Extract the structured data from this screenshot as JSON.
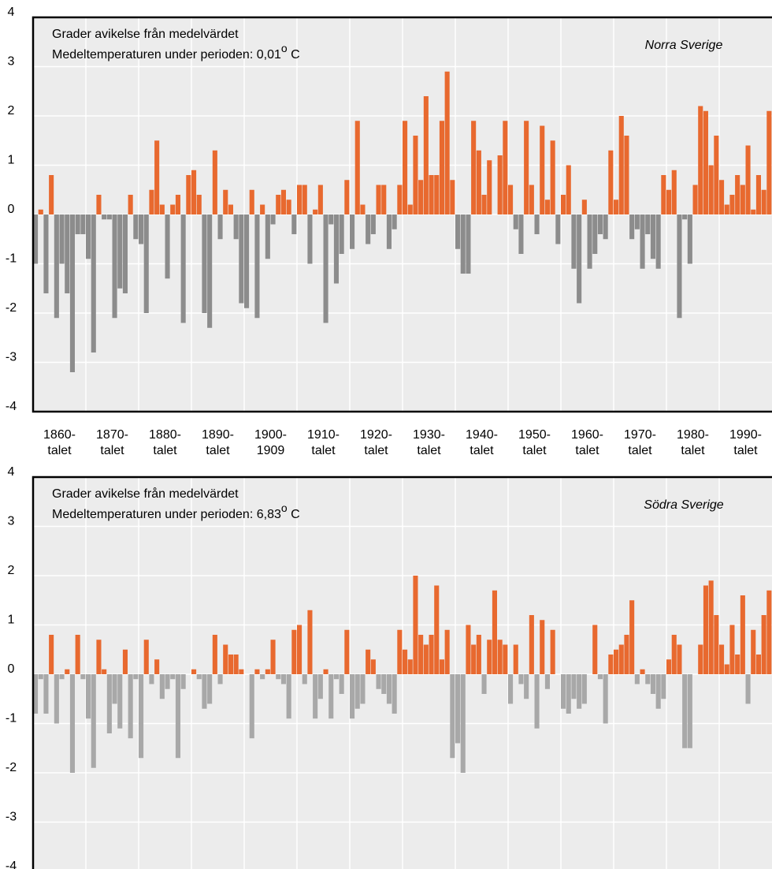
{
  "chart_data": [
    {
      "type": "bar",
      "title": "Norra Sverige",
      "annotations": [
        "Grader avikelse från medelvärdet",
        [
          "Medeltemperaturen under perioden: 0,01",
          "o",
          " C"
        ]
      ],
      "x": [
        1860,
        1861,
        1862,
        1863,
        1864,
        1865,
        1866,
        1867,
        1868,
        1869,
        1870,
        1871,
        1872,
        1873,
        1874,
        1875,
        1876,
        1877,
        1878,
        1879,
        1880,
        1881,
        1882,
        1883,
        1884,
        1885,
        1886,
        1887,
        1888,
        1889,
        1890,
        1891,
        1892,
        1893,
        1894,
        1895,
        1896,
        1897,
        1898,
        1899,
        1900,
        1901,
        1902,
        1903,
        1904,
        1905,
        1906,
        1907,
        1908,
        1909,
        1910,
        1911,
        1912,
        1913,
        1914,
        1915,
        1916,
        1917,
        1918,
        1919,
        1920,
        1921,
        1922,
        1923,
        1924,
        1925,
        1926,
        1927,
        1928,
        1929,
        1930,
        1931,
        1932,
        1933,
        1934,
        1935,
        1936,
        1937,
        1938,
        1939,
        1940,
        1941,
        1942,
        1943,
        1944,
        1945,
        1946,
        1947,
        1948,
        1949,
        1950,
        1951,
        1952,
        1953,
        1954,
        1955,
        1956,
        1957,
        1958,
        1959,
        1960,
        1961,
        1962,
        1963,
        1964,
        1965,
        1966,
        1967,
        1968,
        1969,
        1970,
        1971,
        1972,
        1973,
        1974,
        1975,
        1976,
        1977,
        1978,
        1979,
        1980,
        1981,
        1982,
        1983,
        1984,
        1985,
        1986,
        1987,
        1988,
        1989,
        1990,
        1991,
        1992,
        1993,
        1994,
        1995,
        1996,
        1997,
        1998,
        1999
      ],
      "values": [
        -1.0,
        0.1,
        -1.6,
        0.8,
        -2.1,
        -1.0,
        -1.6,
        -3.2,
        -0.4,
        -0.4,
        -0.9,
        -2.8,
        0.4,
        -0.1,
        -0.1,
        -2.1,
        -1.5,
        -1.6,
        0.4,
        -0.5,
        -0.6,
        -2.0,
        0.5,
        1.5,
        0.2,
        -1.3,
        0.2,
        0.4,
        -2.2,
        0.8,
        0.9,
        0.4,
        -2.0,
        -2.3,
        1.3,
        -0.5,
        0.5,
        0.2,
        -0.5,
        -1.8,
        -1.9,
        0.5,
        -2.1,
        0.2,
        -0.9,
        -0.2,
        0.4,
        0.5,
        0.3,
        -0.4,
        0.6,
        0.6,
        -1.0,
        0.1,
        0.6,
        -2.2,
        -0.2,
        -1.4,
        -0.8,
        0.7,
        -0.7,
        1.9,
        0.2,
        -0.6,
        -0.4,
        0.6,
        0.6,
        -0.7,
        -0.3,
        0.6,
        1.9,
        0.2,
        1.6,
        0.7,
        2.4,
        0.8,
        0.8,
        1.9,
        2.9,
        0.7,
        -0.7,
        -1.2,
        -1.2,
        1.9,
        1.3,
        0.4,
        1.1,
        0.0,
        1.2,
        1.9,
        0.6,
        -0.3,
        -0.8,
        1.9,
        0.6,
        -0.4,
        1.8,
        0.3,
        1.5,
        -0.6,
        0.4,
        1.0,
        -1.1,
        -1.8,
        0.3,
        -1.1,
        -0.8,
        -0.4,
        -0.5,
        1.3,
        0.3,
        2.0,
        1.6,
        -0.5,
        -0.3,
        -1.1,
        -0.4,
        -0.9,
        -1.1,
        0.8,
        0.5,
        0.9,
        -2.1,
        -0.1,
        -1.0,
        0.6,
        2.2,
        2.1,
        1.0,
        1.6,
        0.7,
        0.2,
        0.4,
        0.8,
        0.6,
        1.4,
        0.1,
        0.8,
        0.5,
        2.1
      ],
      "positive_color": "#e8692f",
      "negative_color": "#8c8c8c",
      "xlim": [
        1860,
        2000
      ],
      "xticks": [
        {
          "value": 1860,
          "label": "1860-\ntalet"
        },
        {
          "value": 1870,
          "label": "1870-\ntalet"
        },
        {
          "value": 1880,
          "label": "1880-\ntalet"
        },
        {
          "value": 1890,
          "label": "1890-\ntalet"
        },
        {
          "value": 1900,
          "label": "1900-\n1909"
        },
        {
          "value": 1910,
          "label": "1910-\ntalet"
        },
        {
          "value": 1920,
          "label": "1920-\ntalet"
        },
        {
          "value": 1930,
          "label": "1930-\ntalet"
        },
        {
          "value": 1940,
          "label": "1940-\ntalet"
        },
        {
          "value": 1950,
          "label": "1950-\ntalet"
        },
        {
          "value": 1960,
          "label": "1960-\ntalet"
        },
        {
          "value": 1970,
          "label": "1970-\ntalet"
        },
        {
          "value": 1980,
          "label": "1980-\ntalet"
        },
        {
          "value": 1990,
          "label": "1990-\ntalet"
        }
      ],
      "ylim": [
        -4,
        4
      ],
      "yticks": [
        -4,
        -3,
        -2,
        -1,
        0,
        1,
        2,
        3,
        4
      ],
      "grid": true
    },
    {
      "type": "bar",
      "title": "Södra Sverige",
      "annotations": [
        "Grader avikelse från medelvärdet",
        [
          "Medeltemperaturen under perioden: 6,83",
          "o",
          " C"
        ]
      ],
      "x": [
        1860,
        1861,
        1862,
        1863,
        1864,
        1865,
        1866,
        1867,
        1868,
        1869,
        1870,
        1871,
        1872,
        1873,
        1874,
        1875,
        1876,
        1877,
        1878,
        1879,
        1880,
        1881,
        1882,
        1883,
        1884,
        1885,
        1886,
        1887,
        1888,
        1889,
        1890,
        1891,
        1892,
        1893,
        1894,
        1895,
        1896,
        1897,
        1898,
        1899,
        1900,
        1901,
        1902,
        1903,
        1904,
        1905,
        1906,
        1907,
        1908,
        1909,
        1910,
        1911,
        1912,
        1913,
        1914,
        1915,
        1916,
        1917,
        1918,
        1919,
        1920,
        1921,
        1922,
        1923,
        1924,
        1925,
        1926,
        1927,
        1928,
        1929,
        1930,
        1931,
        1932,
        1933,
        1934,
        1935,
        1936,
        1937,
        1938,
        1939,
        1940,
        1941,
        1942,
        1943,
        1944,
        1945,
        1946,
        1947,
        1948,
        1949,
        1950,
        1951,
        1952,
        1953,
        1954,
        1955,
        1956,
        1957,
        1958,
        1959,
        1960,
        1961,
        1962,
        1963,
        1964,
        1965,
        1966,
        1967,
        1968,
        1969,
        1970,
        1971,
        1972,
        1973,
        1974,
        1975,
        1976,
        1977,
        1978,
        1979,
        1980,
        1981,
        1982,
        1983,
        1984,
        1985,
        1986,
        1987,
        1988,
        1989,
        1990,
        1991,
        1992,
        1993,
        1994,
        1995,
        1996,
        1997,
        1998,
        1999
      ],
      "values": [
        -0.8,
        -0.1,
        -0.8,
        0.8,
        -1.0,
        -0.1,
        0.1,
        -2.0,
        0.8,
        -0.1,
        -0.9,
        -1.9,
        0.7,
        0.1,
        -1.2,
        -0.6,
        -1.1,
        0.5,
        -1.3,
        -0.1,
        -1.7,
        0.7,
        -0.2,
        0.3,
        -0.5,
        -0.3,
        -0.1,
        -1.7,
        -0.3,
        0.0,
        0.1,
        -0.1,
        -0.7,
        -0.6,
        0.8,
        -0.2,
        0.6,
        0.4,
        0.4,
        0.1,
        0.0,
        -1.3,
        0.1,
        -0.1,
        0.1,
        0.7,
        -0.1,
        -0.2,
        -0.9,
        0.9,
        1.0,
        -0.2,
        1.3,
        -0.9,
        -0.5,
        0.1,
        -0.9,
        -0.1,
        -0.4,
        0.9,
        -0.9,
        -0.7,
        -0.6,
        0.5,
        0.3,
        -0.3,
        -0.4,
        -0.6,
        -0.8,
        0.9,
        0.5,
        0.3,
        2.0,
        0.8,
        0.6,
        0.8,
        1.8,
        0.3,
        0.9,
        -1.7,
        -1.4,
        -2.0,
        1.0,
        0.6,
        0.8,
        -0.4,
        0.7,
        1.7,
        0.7,
        0.6,
        -0.6,
        0.6,
        -0.2,
        -0.5,
        1.2,
        -1.1,
        1.1,
        -0.3,
        0.9,
        0.0,
        -0.7,
        -0.8,
        -0.5,
        -0.7,
        -0.6,
        0.0,
        1.0,
        -0.1,
        -1.0,
        0.4,
        0.5,
        0.6,
        0.8,
        1.5,
        -0.2,
        0.1,
        -0.2,
        -0.4,
        -0.7,
        -0.5,
        0.3,
        0.8,
        0.6,
        -1.5,
        -1.5,
        0.0,
        0.6,
        1.8,
        1.9,
        1.2,
        0.6,
        0.2,
        1.0,
        0.4,
        1.6,
        -0.6,
        0.9,
        0.4,
        1.2,
        1.7
      ],
      "positive_color": "#e8692f",
      "negative_color": "#a8a8a8",
      "xlim": [
        1860,
        2000
      ],
      "xticks": [
        1860,
        1870,
        1880,
        1890,
        1900,
        1910,
        1920,
        1930,
        1940,
        1950,
        1960,
        1970,
        1980,
        1990
      ],
      "xtick_labels": false,
      "ylim": [
        -4,
        4
      ],
      "yticks": [
        -4,
        -3,
        -2,
        -1,
        0,
        1,
        2,
        3,
        4
      ],
      "grid": true
    }
  ]
}
